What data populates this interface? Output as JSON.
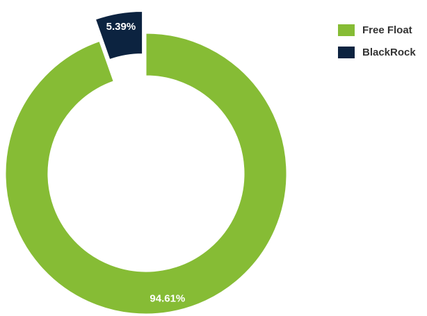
{
  "chart_data": {
    "type": "donut",
    "categories": [
      "Free Float",
      "BlackRock"
    ],
    "values": [
      94.61,
      5.39
    ],
    "value_labels": [
      "94.61%",
      "5.39%"
    ],
    "colors": [
      "#86bc35",
      "#0c2340"
    ],
    "legend": "top-right"
  }
}
